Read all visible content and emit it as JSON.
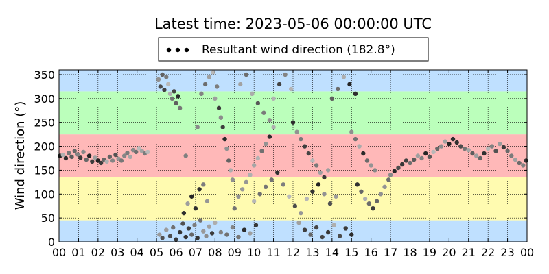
{
  "chart_data": {
    "type": "scatter",
    "title": "Latest time: 2023-05-06 00:00:00 UTC",
    "xlabel": "",
    "ylabel": "Wind direction (°)",
    "xlim": [
      0,
      24
    ],
    "ylim": [
      0,
      360
    ],
    "x_ticks": [
      "00",
      "01",
      "02",
      "03",
      "04",
      "05",
      "06",
      "07",
      "08",
      "09",
      "10",
      "11",
      "12",
      "13",
      "14",
      "15",
      "16",
      "17",
      "18",
      "19",
      "20",
      "21",
      "22",
      "23",
      "00"
    ],
    "y_ticks": [
      0,
      50,
      100,
      150,
      200,
      250,
      300,
      350
    ],
    "grid": true,
    "legend": {
      "placement": "top-center",
      "label": "Resultant wind direction (182.8°)"
    },
    "bands": [
      {
        "from": 0,
        "to": 45,
        "color": "#bfe0ff"
      },
      {
        "from": 45,
        "to": 135,
        "color": "#fffbb0"
      },
      {
        "from": 135,
        "to": 225,
        "color": "#ffb8b8"
      },
      {
        "from": 225,
        "to": 315,
        "color": "#bbffbb"
      },
      {
        "from": 315,
        "to": 360,
        "color": "#bfe0ff"
      }
    ],
    "series": [
      {
        "color_range": [
          "#222222",
          "#bbbbbb"
        ],
        "points": [
          [
            0.05,
            180
          ],
          [
            0.2,
            182
          ],
          [
            0.35,
            175
          ],
          [
            0.5,
            186
          ],
          [
            0.65,
            178
          ],
          [
            0.8,
            190
          ],
          [
            0.95,
            183
          ],
          [
            1.1,
            176
          ],
          [
            1.25,
            188
          ],
          [
            1.4,
            172
          ],
          [
            1.55,
            180
          ],
          [
            1.7,
            168
          ],
          [
            1.85,
            176
          ],
          [
            2.0,
            170
          ],
          [
            2.15,
            165
          ],
          [
            2.3,
            172
          ],
          [
            2.45,
            168
          ],
          [
            2.6,
            178
          ],
          [
            2.75,
            170
          ],
          [
            2.9,
            182
          ],
          [
            3.05,
            174
          ],
          [
            3.2,
            170
          ],
          [
            3.35,
            180
          ],
          [
            3.5,
            186
          ],
          [
            3.65,
            178
          ],
          [
            3.8,
            192
          ],
          [
            3.95,
            188
          ],
          [
            4.1,
            196
          ],
          [
            4.25,
            190
          ],
          [
            4.4,
            185
          ],
          [
            4.55,
            188
          ],
          [
            5.1,
            340
          ],
          [
            5.2,
            325
          ],
          [
            5.3,
            350
          ],
          [
            5.4,
            318
          ],
          [
            5.5,
            345
          ],
          [
            5.6,
            330
          ],
          [
            5.7,
            310
          ],
          [
            5.8,
            300
          ],
          [
            5.9,
            315
          ],
          [
            6.0,
            290
          ],
          [
            6.1,
            305
          ],
          [
            6.2,
            280
          ],
          [
            5.15,
            15
          ],
          [
            5.3,
            8
          ],
          [
            5.5,
            25
          ],
          [
            5.7,
            12
          ],
          [
            5.85,
            30
          ],
          [
            6.0,
            5
          ],
          [
            6.2,
            20
          ],
          [
            6.35,
            38
          ],
          [
            6.5,
            10
          ],
          [
            6.65,
            28
          ],
          [
            6.8,
            15
          ],
          [
            6.95,
            35
          ],
          [
            7.1,
            8
          ],
          [
            7.25,
            45
          ],
          [
            7.4,
            22
          ],
          [
            7.55,
            12
          ],
          [
            7.7,
            32
          ],
          [
            7.85,
            18
          ],
          [
            6.4,
            60
          ],
          [
            6.6,
            80
          ],
          [
            6.8,
            95
          ],
          [
            7.0,
            70
          ],
          [
            7.2,
            110
          ],
          [
            7.4,
            120
          ],
          [
            7.6,
            85
          ],
          [
            6.5,
            180
          ],
          [
            7.1,
            240
          ],
          [
            7.3,
            310
          ],
          [
            7.5,
            330
          ],
          [
            7.7,
            345
          ],
          [
            7.9,
            355
          ],
          [
            8.0,
            300
          ],
          [
            8.1,
            325
          ],
          [
            8.2,
            280
          ],
          [
            8.3,
            260
          ],
          [
            8.4,
            240
          ],
          [
            8.5,
            215
          ],
          [
            8.6,
            195
          ],
          [
            8.7,
            170
          ],
          [
            8.8,
            150
          ],
          [
            8.9,
            130
          ],
          [
            8.0,
            40
          ],
          [
            8.3,
            20
          ],
          [
            8.6,
            15
          ],
          [
            8.9,
            30
          ],
          [
            9.2,
            10
          ],
          [
            9.5,
            25
          ],
          [
            9.8,
            18
          ],
          [
            10.1,
            35
          ],
          [
            9.0,
            70
          ],
          [
            9.2,
            95
          ],
          [
            9.4,
            110
          ],
          [
            9.6,
            125
          ],
          [
            9.8,
            140
          ],
          [
            10.0,
            160
          ],
          [
            10.2,
            175
          ],
          [
            10.4,
            190
          ],
          [
            10.6,
            205
          ],
          [
            10.8,
            220
          ],
          [
            11.0,
            240
          ],
          [
            9.3,
            330
          ],
          [
            9.6,
            350
          ],
          [
            9.9,
            310
          ],
          [
            10.2,
            290
          ],
          [
            10.5,
            270
          ],
          [
            10.8,
            255
          ],
          [
            11.0,
            300
          ],
          [
            11.3,
            330
          ],
          [
            11.6,
            350
          ],
          [
            11.9,
            320
          ],
          [
            10.0,
            85
          ],
          [
            10.3,
            100
          ],
          [
            10.6,
            115
          ],
          [
            10.9,
            130
          ],
          [
            11.2,
            145
          ],
          [
            11.5,
            120
          ],
          [
            11.8,
            95
          ],
          [
            12.1,
            75
          ],
          [
            12.4,
            60
          ],
          [
            12.7,
            90
          ],
          [
            13.0,
            105
          ],
          [
            13.3,
            120
          ],
          [
            13.6,
            100
          ],
          [
            13.9,
            80
          ],
          [
            14.2,
            95
          ],
          [
            12.0,
            250
          ],
          [
            12.2,
            230
          ],
          [
            12.4,
            215
          ],
          [
            12.6,
            200
          ],
          [
            12.8,
            185
          ],
          [
            13.0,
            170
          ],
          [
            13.2,
            160
          ],
          [
            13.4,
            145
          ],
          [
            13.6,
            135
          ],
          [
            13.8,
            150
          ],
          [
            12.3,
            40
          ],
          [
            12.6,
            25
          ],
          [
            12.9,
            15
          ],
          [
            13.2,
            30
          ],
          [
            13.5,
            10
          ],
          [
            13.8,
            20
          ],
          [
            14.1,
            35
          ],
          [
            14.4,
            12
          ],
          [
            14.7,
            28
          ],
          [
            15.0,
            15
          ],
          [
            14.0,
            300
          ],
          [
            14.3,
            320
          ],
          [
            14.6,
            345
          ],
          [
            14.9,
            330
          ],
          [
            15.2,
            310
          ],
          [
            15.0,
            230
          ],
          [
            15.2,
            215
          ],
          [
            15.4,
            200
          ],
          [
            15.6,
            185
          ],
          [
            15.8,
            170
          ],
          [
            16.0,
            160
          ],
          [
            16.2,
            150
          ],
          [
            15.3,
            120
          ],
          [
            15.5,
            105
          ],
          [
            15.7,
            90
          ],
          [
            15.9,
            80
          ],
          [
            16.1,
            70
          ],
          [
            16.3,
            85
          ],
          [
            16.5,
            100
          ],
          [
            16.7,
            115
          ],
          [
            16.9,
            130
          ],
          [
            17.0,
            140
          ],
          [
            17.2,
            148
          ],
          [
            17.4,
            155
          ],
          [
            17.6,
            162
          ],
          [
            17.8,
            170
          ],
          [
            18.0,
            165
          ],
          [
            18.2,
            172
          ],
          [
            18.4,
            180
          ],
          [
            18.6,
            175
          ],
          [
            18.8,
            185
          ],
          [
            19.0,
            178
          ],
          [
            19.2,
            188
          ],
          [
            19.4,
            195
          ],
          [
            19.6,
            200
          ],
          [
            19.8,
            210
          ],
          [
            20.0,
            205
          ],
          [
            20.2,
            215
          ],
          [
            20.4,
            208
          ],
          [
            20.6,
            200
          ],
          [
            20.8,
            195
          ],
          [
            21.0,
            192
          ],
          [
            21.2,
            185
          ],
          [
            21.4,
            180
          ],
          [
            21.6,
            175
          ],
          [
            21.8,
            185
          ],
          [
            22.0,
            195
          ],
          [
            22.2,
            200
          ],
          [
            22.4,
            190
          ],
          [
            22.6,
            205
          ],
          [
            22.8,
            198
          ],
          [
            23.0,
            190
          ],
          [
            23.2,
            180
          ],
          [
            23.4,
            172
          ],
          [
            23.6,
            165
          ],
          [
            23.8,
            160
          ],
          [
            23.95,
            170
          ]
        ]
      }
    ]
  }
}
